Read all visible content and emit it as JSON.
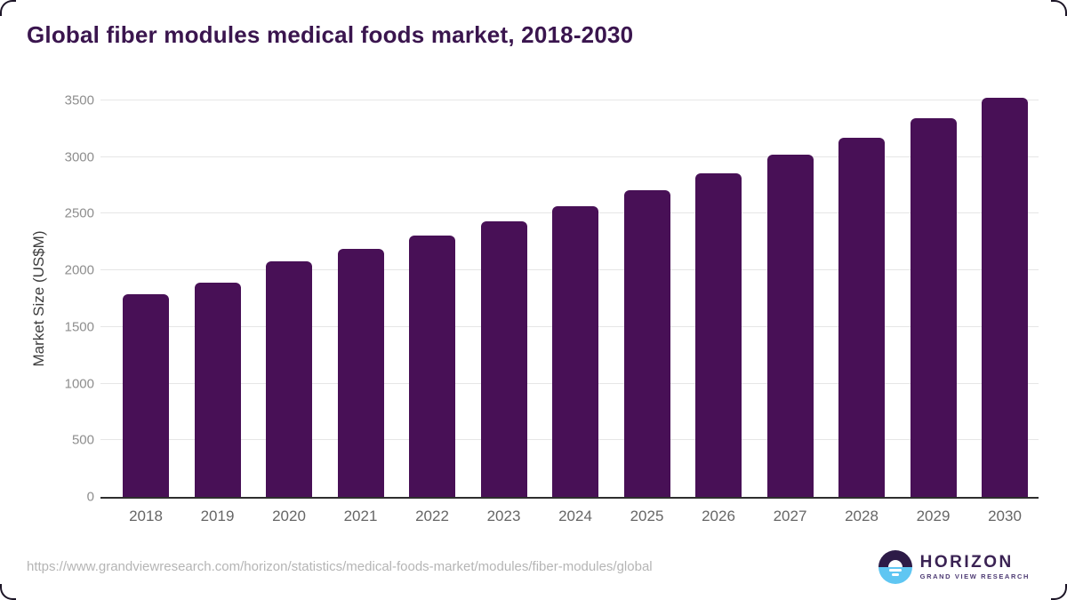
{
  "header": {
    "title": "Global fiber modules medical foods market, 2018-2030"
  },
  "chart_data": {
    "type": "bar",
    "title": "Global fiber modules medical foods market, 2018-2030",
    "categories": [
      "2018",
      "2019",
      "2020",
      "2021",
      "2022",
      "2023",
      "2024",
      "2025",
      "2026",
      "2027",
      "2028",
      "2029",
      "2030"
    ],
    "values": [
      1790,
      1890,
      2080,
      2190,
      2310,
      2430,
      2570,
      2710,
      2860,
      3020,
      3170,
      3340,
      3520
    ],
    "xlabel": "",
    "ylabel": "Market Size (US$M)",
    "ylim": [
      0,
      3500
    ],
    "yticks": [
      0,
      500,
      1000,
      1500,
      2000,
      2500,
      3000,
      3500
    ],
    "grid": "horizontal",
    "legend": "none",
    "bar_color": "#481056"
  },
  "footer": {
    "source_url": "https://www.grandviewresearch.com/horizon/statistics/medical-foods-market/modules/fiber-modules/global",
    "logo": {
      "name": "HORIZON",
      "subtitle": "GRAND VIEW RESEARCH",
      "icon": "horizon-sunrise-icon"
    }
  },
  "colors": {
    "bar": "#481056",
    "title_text": "#3a154e",
    "axis_line": "#2e2e2e",
    "gridline": "#e6e6e6",
    "y_tick_text": "#8e8e8e",
    "x_tick_text": "#666666",
    "url_text": "#b5b5b5",
    "logo_dark": "#2d1b47",
    "logo_blue": "#5fc6f2"
  }
}
